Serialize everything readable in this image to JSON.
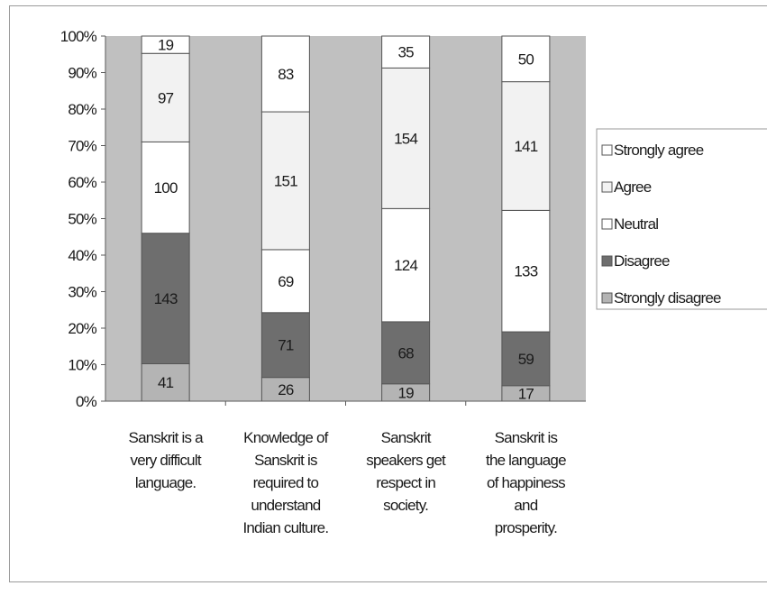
{
  "chart_data": {
    "type": "bar",
    "stacked": true,
    "normalized": true,
    "title": "",
    "xlabel": "",
    "ylabel": "",
    "ylim": [
      0,
      100
    ],
    "y_ticks": [
      "0%",
      "10%",
      "20%",
      "30%",
      "40%",
      "50%",
      "60%",
      "70%",
      "80%",
      "90%",
      "100%"
    ],
    "grid": false,
    "legend_position": "right",
    "categories": [
      [
        "Sanskrit is a",
        "very difficult",
        "language."
      ],
      [
        "Knowledge of",
        "Sanskrit is",
        "required to",
        "understand",
        "Indian culture."
      ],
      [
        "Sanskrit",
        "speakers get",
        "respect in",
        "society."
      ],
      [
        "Sanskrit is",
        "the language",
        "of happiness",
        "and",
        "prosperity."
      ]
    ],
    "series": [
      {
        "name": "Strongly disagree",
        "color": "#b4b4b4",
        "values": [
          41,
          26,
          19,
          17
        ]
      },
      {
        "name": "Disagree",
        "color": "#6e6e6e",
        "values": [
          143,
          71,
          68,
          59
        ]
      },
      {
        "name": "Neutral",
        "color": "#ffffff",
        "values": [
          100,
          69,
          124,
          133
        ]
      },
      {
        "name": "Agree",
        "color": "#f2f2f2",
        "values": [
          97,
          151,
          154,
          141
        ]
      },
      {
        "name": "Strongly agree",
        "color": "#ffffff",
        "values": [
          19,
          83,
          35,
          50
        ]
      }
    ],
    "legend_order": [
      "Strongly agree",
      "Agree",
      "Neutral",
      "Disagree",
      "Strongly disagree"
    ],
    "plot_background": "#c0c0c0"
  }
}
